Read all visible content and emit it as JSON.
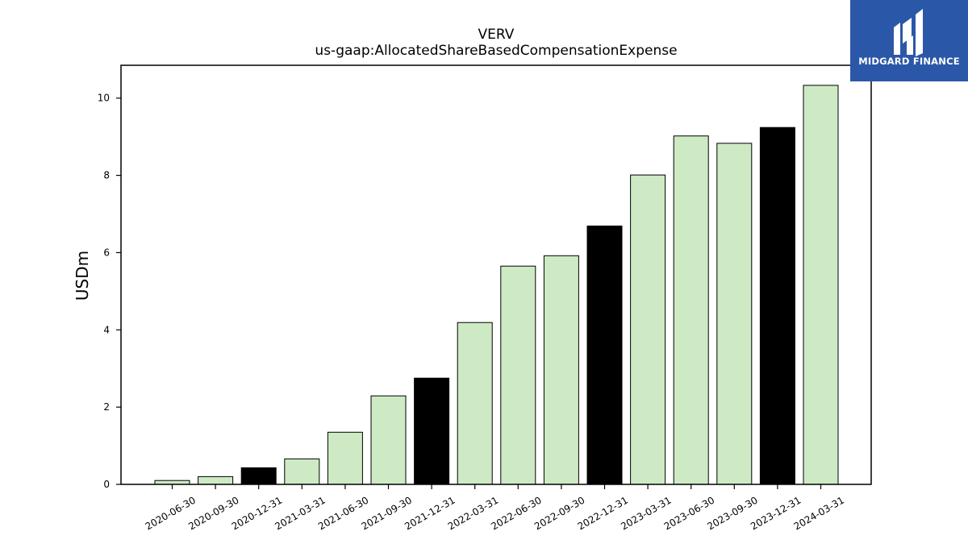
{
  "chart_data": {
    "type": "bar",
    "title": "VERV",
    "subtitle": "us-gaap:AllocatedShareBasedCompensationExpense",
    "xlabel": "",
    "ylabel": "USDm",
    "ylim": [
      0,
      10.85
    ],
    "yticks": [
      0,
      2,
      4,
      6,
      8,
      10
    ],
    "grid": false,
    "categories": [
      "2020-06-30",
      "2020-09-30",
      "2020-12-31",
      "2021-03-31",
      "2021-06-30",
      "2021-09-30",
      "2021-12-31",
      "2022-03-31",
      "2022-06-30",
      "2022-09-30",
      "2022-12-31",
      "2023-03-31",
      "2023-06-30",
      "2023-09-30",
      "2023-12-31",
      "2024-03-31"
    ],
    "values": [
      0.1,
      0.2,
      0.43,
      0.66,
      1.35,
      2.29,
      2.75,
      4.19,
      5.65,
      5.92,
      6.69,
      8.01,
      9.02,
      8.83,
      9.24,
      10.33
    ],
    "colors": {
      "quarter": "#cdeac5",
      "year_end": "#000000",
      "edge": "#000000"
    },
    "year_end_categories": [
      "2020-12-31",
      "2021-12-31",
      "2022-12-31",
      "2023-12-31"
    ]
  },
  "logo": {
    "text": "MIDGARD FINANCE",
    "background": "#2b57a8"
  }
}
